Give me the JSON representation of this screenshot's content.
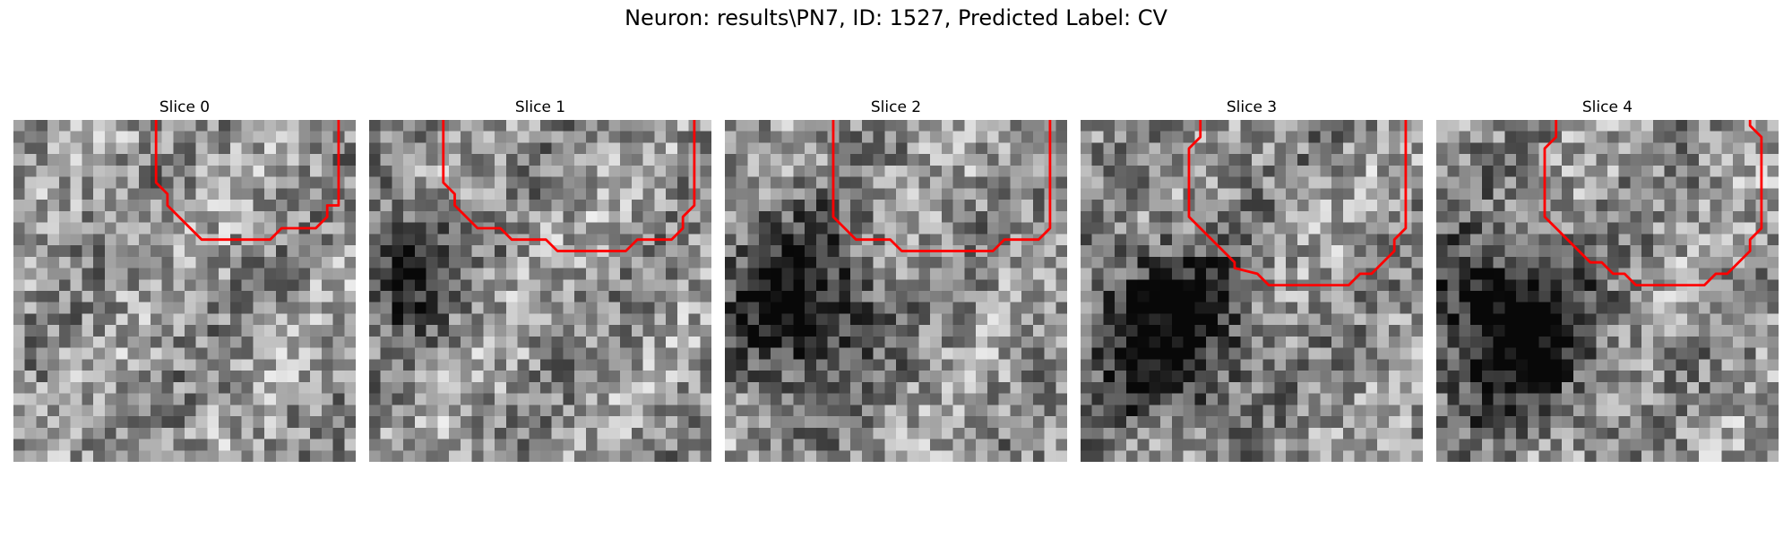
{
  "figure": {
    "title": "Neuron: results\\PN7, ID: 1527, Predicted Label: CV",
    "contour_color": "#ff0000",
    "colormap": "gray",
    "panels": [
      {
        "title": "Slice 0",
        "seed": 11,
        "dark_blob": null,
        "contour": [
          [
            12.5,
            0
          ],
          [
            12.5,
            5.5
          ],
          [
            13.5,
            6.5
          ],
          [
            13.5,
            7.5
          ],
          [
            14.5,
            8.5
          ],
          [
            16.5,
            10.5
          ],
          [
            22.5,
            10.5
          ],
          [
            23.5,
            9.5
          ],
          [
            26.5,
            9.5
          ],
          [
            27.5,
            8.5
          ],
          [
            27.5,
            7.5
          ],
          [
            28.5,
            7.5
          ],
          [
            28.5,
            0
          ]
        ]
      },
      {
        "title": "Slice 1",
        "seed": 23,
        "dark_blob": [
          2.5,
          12.5,
          4.5,
          5.5,
          0.55
        ],
        "contour": [
          [
            6.5,
            0
          ],
          [
            6.5,
            5.5
          ],
          [
            7.5,
            6.5
          ],
          [
            7.5,
            7.5
          ],
          [
            9.5,
            9.5
          ],
          [
            11.5,
            9.5
          ],
          [
            12.5,
            10.5
          ],
          [
            15.5,
            10.5
          ],
          [
            16.5,
            11.5
          ],
          [
            22.5,
            11.5
          ],
          [
            23.5,
            10.5
          ],
          [
            26.5,
            10.5
          ],
          [
            27.5,
            9.5
          ],
          [
            27.5,
            8.5
          ],
          [
            28.5,
            7.5
          ],
          [
            28.5,
            0
          ]
        ]
      },
      {
        "title": "Slice 2",
        "seed": 37,
        "dark_blob": [
          6.0,
          16.0,
          7.0,
          8.0,
          0.6
        ],
        "contour": [
          [
            9.5,
            0
          ],
          [
            9.5,
            8.5
          ],
          [
            11.5,
            10.5
          ],
          [
            14.5,
            10.5
          ],
          [
            15.5,
            11.5
          ],
          [
            23.5,
            11.5
          ],
          [
            24.5,
            10.5
          ],
          [
            27.5,
            10.5
          ],
          [
            28.5,
            9.5
          ],
          [
            28.5,
            0
          ]
        ]
      },
      {
        "title": "Slice 3",
        "seed": 53,
        "dark_blob": [
          7.0,
          18.0,
          7.5,
          8.0,
          0.65
        ],
        "contour": [
          [
            10.5,
            0
          ],
          [
            10.5,
            1.5
          ],
          [
            9.5,
            2.5
          ],
          [
            9.5,
            8.5
          ],
          [
            13.5,
            12.5
          ],
          [
            13.5,
            13.0
          ],
          [
            15.5,
            13.5
          ],
          [
            16.5,
            14.5
          ],
          [
            23.5,
            14.5
          ],
          [
            24.5,
            13.5
          ],
          [
            25.5,
            13.5
          ],
          [
            27.5,
            11.5
          ],
          [
            27.5,
            10.5
          ],
          [
            28.5,
            9.5
          ],
          [
            28.5,
            0
          ]
        ]
      },
      {
        "title": "Slice 4",
        "seed": 71,
        "dark_blob": [
          6.0,
          17.5,
          7.5,
          8.0,
          0.72
        ],
        "contour": [
          [
            10.5,
            0
          ],
          [
            10.5,
            1.5
          ],
          [
            9.5,
            2.5
          ],
          [
            9.5,
            8.5
          ],
          [
            13.5,
            12.5
          ],
          [
            14.5,
            12.5
          ],
          [
            15.5,
            13.5
          ],
          [
            16.5,
            13.5
          ],
          [
            17.5,
            14.5
          ],
          [
            23.5,
            14.5
          ],
          [
            24.5,
            13.5
          ],
          [
            25.5,
            13.5
          ],
          [
            27.5,
            11.5
          ],
          [
            27.5,
            10.5
          ],
          [
            28.5,
            9.5
          ],
          [
            28.5,
            1.5
          ],
          [
            27.5,
            0.5
          ],
          [
            27.5,
            0
          ]
        ]
      }
    ]
  }
}
